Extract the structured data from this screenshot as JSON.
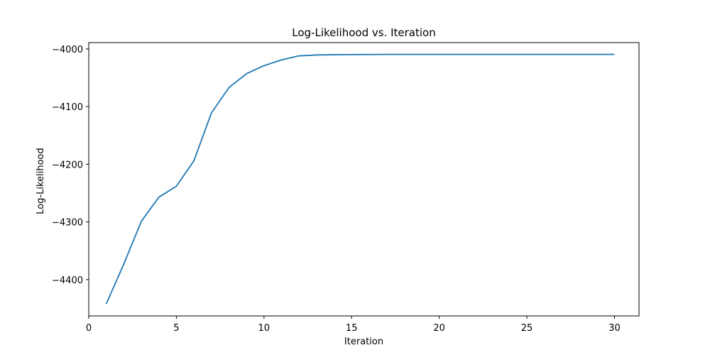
{
  "chart_data": {
    "type": "line",
    "title": "Log-Likelihood vs. Iteration",
    "xlabel": "Iteration",
    "ylabel": "Log-Likelihood",
    "xlim": [
      0.0,
      31.4
    ],
    "ylim": [
      -4463.0,
      -3989.0
    ],
    "xticks": [
      0,
      5,
      10,
      15,
      20,
      25,
      30
    ],
    "yticks": [
      -4400,
      -4300,
      -4200,
      -4100,
      -4000
    ],
    "xtick_labels": [
      "0",
      "5",
      "10",
      "15",
      "20",
      "25",
      "30"
    ],
    "ytick_labels": [
      "−4400",
      "−4300",
      "−4200",
      "−4100",
      "−4000"
    ],
    "grid": false,
    "series": [
      {
        "color": "#1f77b4",
        "x": [
          1,
          2,
          3,
          4,
          5,
          6,
          7,
          8,
          9,
          10,
          11,
          12,
          13,
          14,
          15,
          16,
          17,
          18,
          19,
          20,
          21,
          22,
          23,
          24,
          25,
          26,
          27,
          28,
          29,
          30
        ],
        "y": [
          -4442,
          -4373,
          -4299,
          -4257,
          -4238,
          -4194,
          -4111,
          -4067,
          -4043,
          -4029,
          -4019,
          -4012,
          -4010.5,
          -4010,
          -4009.8,
          -4009.6,
          -4009.5,
          -4009.5,
          -4009.5,
          -4009.5,
          -4009.5,
          -4009.5,
          -4009.5,
          -4009.5,
          -4009.5,
          -4009.5,
          -4009.5,
          -4009.5,
          -4009.5,
          -4009.5
        ]
      }
    ]
  }
}
